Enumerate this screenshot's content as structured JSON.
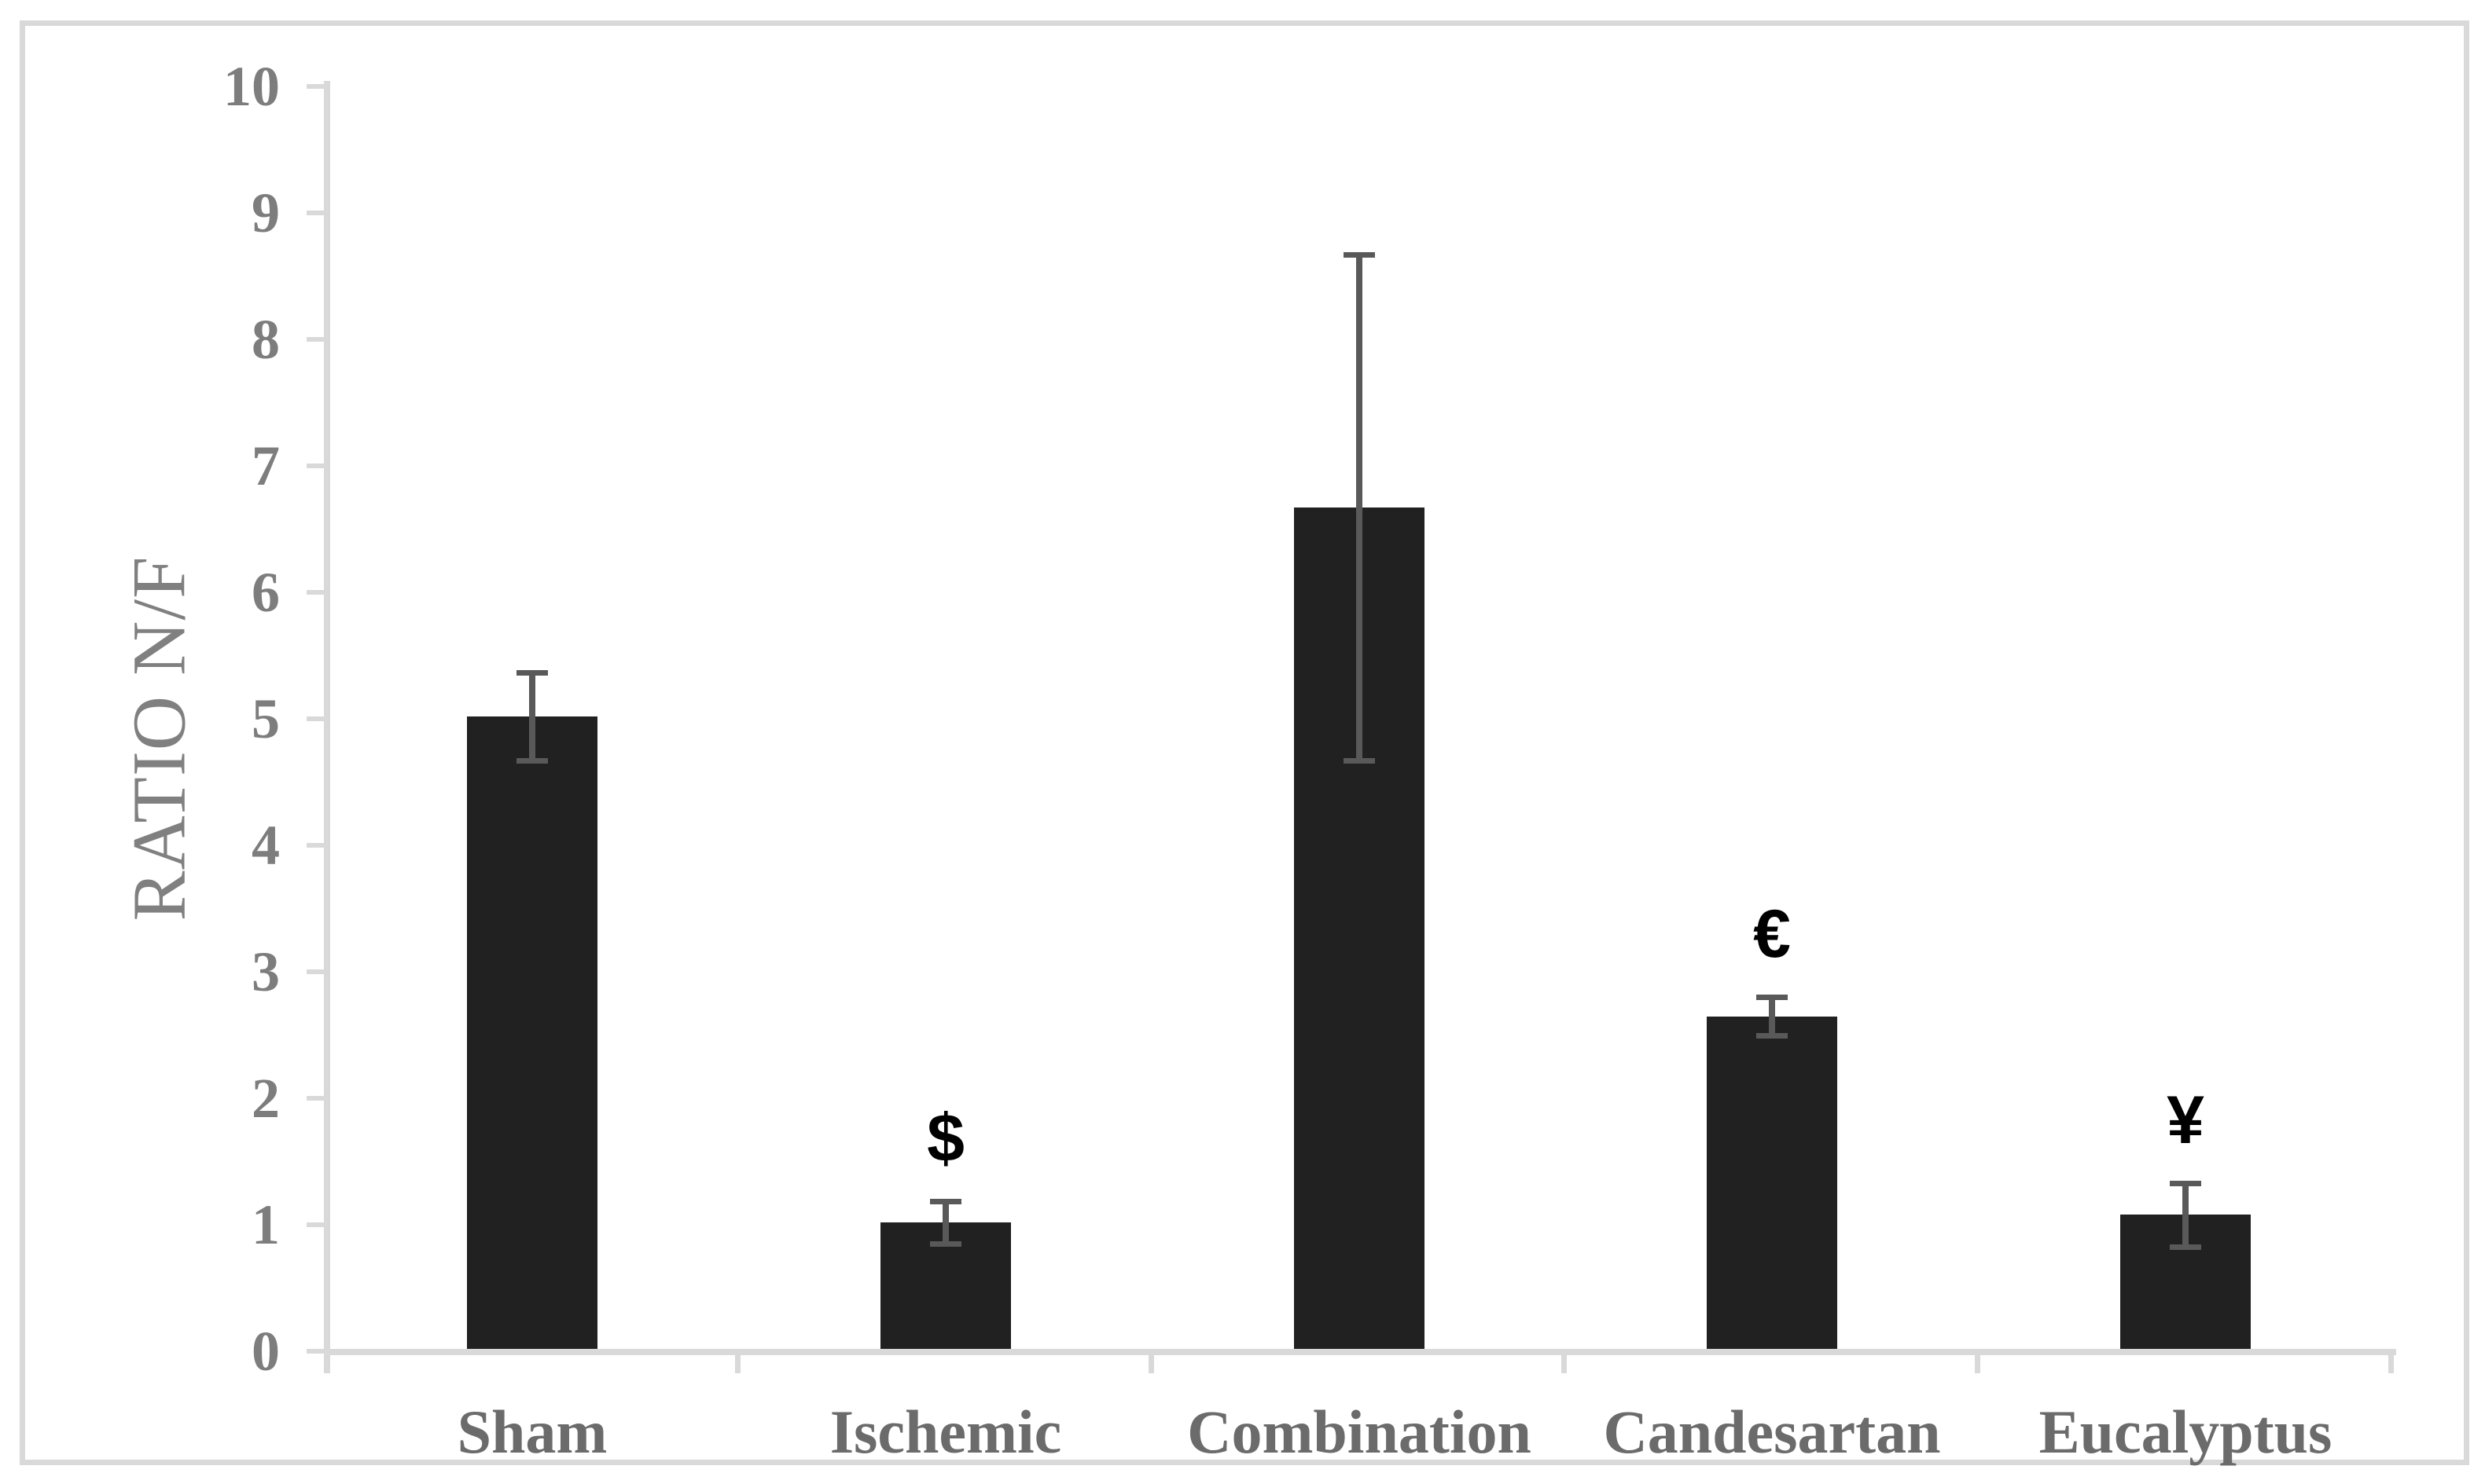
{
  "chart_data": {
    "type": "bar",
    "title": "",
    "xlabel": "",
    "ylabel": "RATIO N/F",
    "categories": [
      "Sham",
      "Ischemic",
      "Combination",
      "Candesartan",
      "Eucalyptus"
    ],
    "values": [
      5.0,
      1.0,
      6.65,
      2.63,
      1.06
    ],
    "errors": [
      0.35,
      0.17,
      2.0,
      0.15,
      0.25
    ],
    "annotations": [
      "",
      "$",
      "",
      "€",
      "¥"
    ],
    "ylim": [
      0,
      10
    ],
    "yticks": [
      0,
      1,
      2,
      3,
      4,
      5,
      6,
      7,
      8,
      9,
      10
    ],
    "grid": false,
    "legend": "none",
    "colors": {
      "bar": "#212121",
      "error_bar": "#595959",
      "axis": "#d9d9d9",
      "frame": "#d9d9d9",
      "tick_label": "#7d7d7d",
      "category_label": "#6b6b6b",
      "axis_title": "#808080",
      "annotation": "#000000",
      "background": "#ffffff"
    }
  }
}
